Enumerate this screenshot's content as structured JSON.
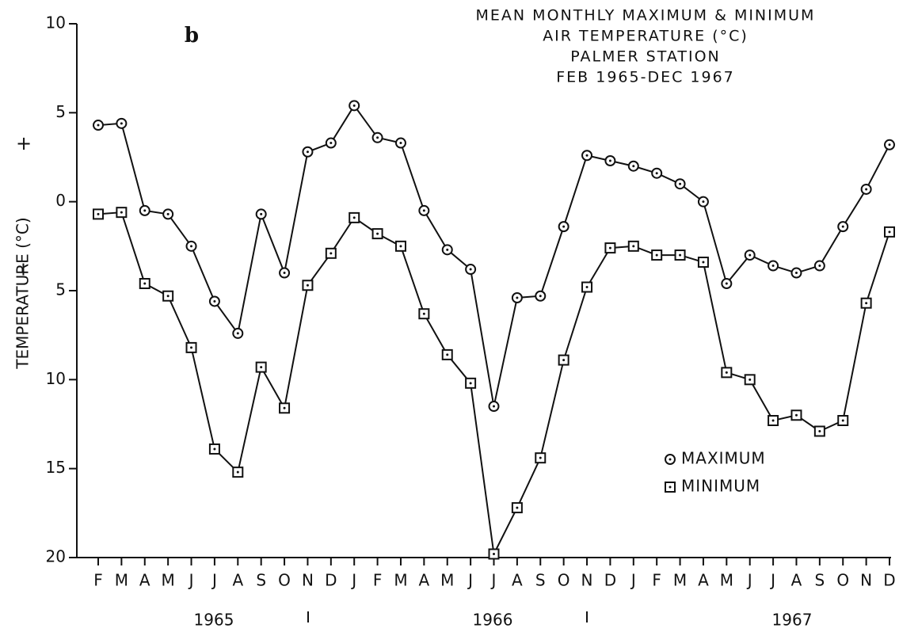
{
  "chart_data": {
    "type": "line",
    "title": [
      "MEAN MONTHLY MAXIMUM & MINIMUM",
      "AIR TEMPERATURE (°C)",
      "PALMER STATION",
      "FEB 1965-DEC 1967"
    ],
    "panel_label": "b",
    "y_label": "TEMPERATURE (°C)",
    "sign_labels": [
      "+",
      "−"
    ],
    "categories": [
      "F",
      "M",
      "A",
      "M",
      "J",
      "J",
      "A",
      "S",
      "O",
      "N",
      "D",
      "J",
      "F",
      "M",
      "A",
      "M",
      "J",
      "J",
      "A",
      "S",
      "O",
      "N",
      "D",
      "J",
      "F",
      "M",
      "A",
      "M",
      "J",
      "J",
      "A",
      "S",
      "O",
      "N",
      "D"
    ],
    "year_labels": [
      "1965",
      "1966",
      "1967"
    ],
    "series": [
      {
        "name": "MAXIMUM",
        "color": "#111111",
        "marker": "circle",
        "values": [
          4.3,
          4.4,
          -0.5,
          -0.7,
          -2.5,
          -5.6,
          -7.4,
          -0.7,
          -4.0,
          2.8,
          3.3,
          5.4,
          3.6,
          3.3,
          -0.5,
          -2.7,
          -3.8,
          -11.5,
          -5.4,
          -5.3,
          -1.4,
          2.6,
          2.3,
          2.0,
          1.6,
          1.0,
          0.0,
          -4.6,
          -3.0,
          -3.6,
          -4.0,
          -3.6,
          -1.4,
          0.7,
          3.2
        ]
      },
      {
        "name": "MINIMUM",
        "color": "#111111",
        "marker": "square",
        "values": [
          -0.7,
          -0.6,
          -4.6,
          -5.3,
          -8.2,
          -13.9,
          -15.2,
          -9.3,
          -11.6,
          -4.7,
          -2.9,
          -0.9,
          -1.8,
          -2.5,
          -6.3,
          -8.6,
          -10.2,
          -19.8,
          -17.2,
          -14.4,
          -8.9,
          -4.8,
          -2.6,
          -2.5,
          -3.0,
          -3.0,
          -3.4,
          -9.6,
          -10.0,
          -12.3,
          -12.0,
          -12.9,
          -12.3,
          -5.7,
          -1.7
        ]
      }
    ],
    "ylim": [
      -20,
      10
    ],
    "yticks": [
      10,
      5,
      0,
      {
        "value": -5,
        "label": "5"
      },
      {
        "value": -10,
        "label": "10"
      },
      {
        "value": -15,
        "label": "15"
      },
      {
        "value": -20,
        "label": "20"
      }
    ],
    "grid": false
  }
}
